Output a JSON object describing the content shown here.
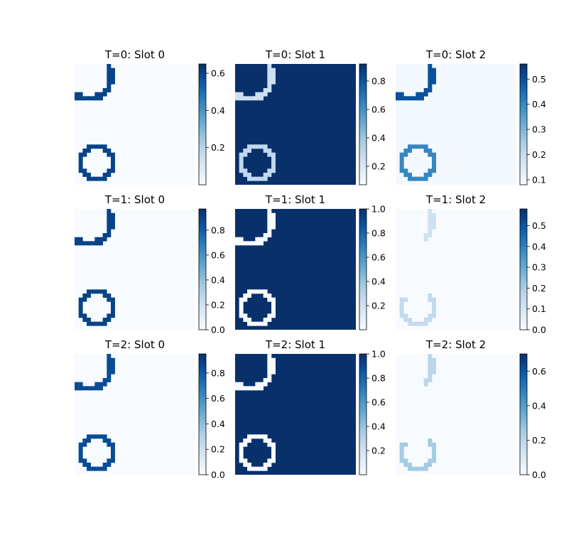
{
  "chart_data": [
    {
      "type": "heatmap",
      "title": "T=0: Slot 0",
      "colormap": "Blues",
      "colorbar": {
        "range": [
          0.0,
          0.65
        ],
        "ticks": [
          0.2,
          0.4,
          0.6
        ]
      },
      "background_value": 0.0,
      "ring_value": 0.6,
      "ring_partial": false,
      "arc_value": 0.6
    },
    {
      "type": "heatmap",
      "title": "T=0: Slot 1",
      "colormap": "Blues",
      "colorbar": {
        "range": [
          0.07,
          0.92
        ],
        "ticks": [
          0.2,
          0.4,
          0.6,
          0.8
        ]
      },
      "background_value": 0.92,
      "ring_value": 0.3,
      "ring_partial": false,
      "arc_value": 0.25
    },
    {
      "type": "heatmap",
      "title": "T=0: Slot 2",
      "colormap": "Blues",
      "colorbar": {
        "range": [
          0.08,
          0.56
        ],
        "ticks": [
          0.1,
          0.2,
          0.3,
          0.4,
          0.5
        ]
      },
      "background_value": 0.09,
      "ring_value": 0.4,
      "ring_partial": false,
      "arc_value": 0.5
    },
    {
      "type": "heatmap",
      "title": "T=1: Slot 0",
      "colormap": "Blues",
      "colorbar": {
        "range": [
          0.0,
          0.97
        ],
        "ticks": [
          0.0,
          0.2,
          0.4,
          0.6,
          0.8
        ]
      },
      "background_value": 0.0,
      "ring_value": 0.9,
      "ring_partial": false,
      "arc_value": 0.9
    },
    {
      "type": "heatmap",
      "title": "T=1: Slot 1",
      "colormap": "Blues",
      "colorbar": {
        "range": [
          0.0,
          1.0
        ],
        "ticks": [
          0.2,
          0.4,
          0.6,
          0.8,
          1.0
        ]
      },
      "background_value": 1.0,
      "ring_value": 0.0,
      "ring_partial": false,
      "arc_value": 0.0
    },
    {
      "type": "heatmap",
      "title": "T=1: Slot 2",
      "colormap": "Blues",
      "colorbar": {
        "range": [
          0.0,
          0.58
        ],
        "ticks": [
          0.0,
          0.1,
          0.2,
          0.3,
          0.4,
          0.5
        ]
      },
      "background_value": 0.0,
      "ring_value": 0.15,
      "ring_partial": true,
      "arc_value": 0.12
    },
    {
      "type": "heatmap",
      "title": "T=2: Slot 0",
      "colormap": "Blues",
      "colorbar": {
        "range": [
          0.0,
          0.95
        ],
        "ticks": [
          0.0,
          0.2,
          0.4,
          0.6,
          0.8
        ]
      },
      "background_value": 0.0,
      "ring_value": 0.85,
      "ring_partial": false,
      "arc_value": 0.85
    },
    {
      "type": "heatmap",
      "title": "T=2: Slot 1",
      "colormap": "Blues",
      "colorbar": {
        "range": [
          0.0,
          1.0
        ],
        "ticks": [
          0.2,
          0.4,
          0.6,
          0.8,
          1.0
        ]
      },
      "background_value": 1.0,
      "ring_value": 0.0,
      "ring_partial": false,
      "arc_value": 0.0
    },
    {
      "type": "heatmap",
      "title": "T=2: Slot 2",
      "colormap": "Blues",
      "colorbar": {
        "range": [
          0.0,
          0.7
        ],
        "ticks": [
          0.0,
          0.2,
          0.4,
          0.6
        ]
      },
      "background_value": 0.0,
      "ring_value": 0.25,
      "ring_partial": true,
      "arc_value": 0.2
    }
  ]
}
